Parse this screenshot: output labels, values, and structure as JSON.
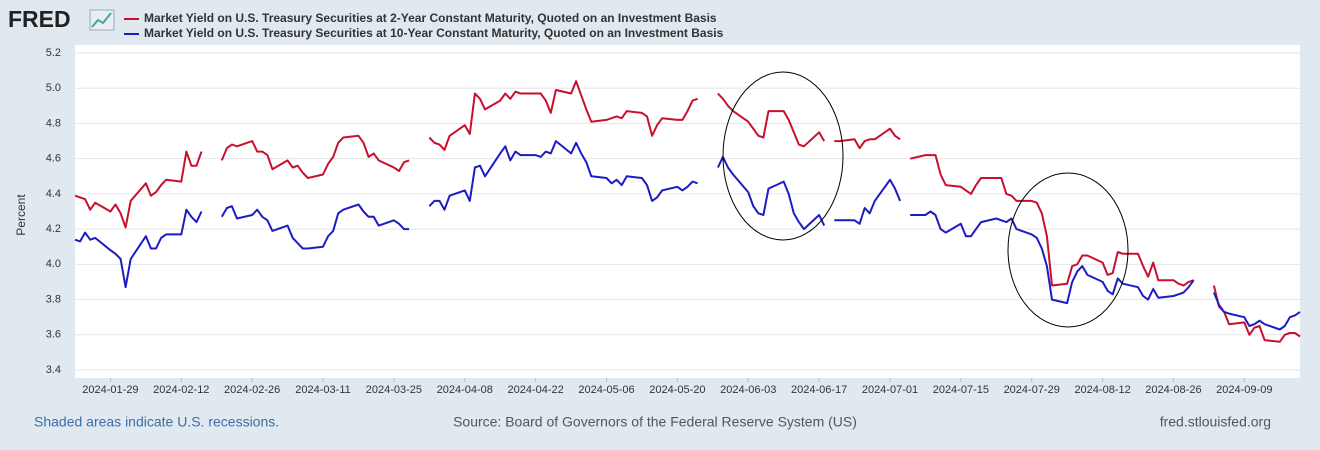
{
  "chart_data": {
    "type": "line",
    "logo": "FRED",
    "y_label": "Percent",
    "note": "Shaded areas indicate U.S. recessions.",
    "source": "Source: Board of Governors of the Federal Reserve System (US)",
    "site": "fred.stlouisfed.org",
    "x": [
      "2024-01-22",
      "2024-01-23",
      "2024-01-24",
      "2024-01-25",
      "2024-01-26",
      "2024-01-29",
      "2024-01-30",
      "2024-01-31",
      "2024-02-01",
      "2024-02-02",
      "2024-02-05",
      "2024-02-06",
      "2024-02-07",
      "2024-02-08",
      "2024-02-09",
      "2024-02-12",
      "2024-02-13",
      "2024-02-14",
      "2024-02-15",
      "2024-02-16",
      "2024-02-19",
      "2024-02-20",
      "2024-02-21",
      "2024-02-22",
      "2024-02-23",
      "2024-02-26",
      "2024-02-27",
      "2024-02-28",
      "2024-02-29",
      "2024-03-01",
      "2024-03-04",
      "2024-03-05",
      "2024-03-06",
      "2024-03-07",
      "2024-03-08",
      "2024-03-11",
      "2024-03-12",
      "2024-03-13",
      "2024-03-14",
      "2024-03-15",
      "2024-03-18",
      "2024-03-19",
      "2024-03-20",
      "2024-03-21",
      "2024-03-22",
      "2024-03-25",
      "2024-03-26",
      "2024-03-27",
      "2024-03-28",
      "2024-03-29",
      "2024-04-01",
      "2024-04-02",
      "2024-04-03",
      "2024-04-04",
      "2024-04-05",
      "2024-04-08",
      "2024-04-09",
      "2024-04-10",
      "2024-04-11",
      "2024-04-12",
      "2024-04-15",
      "2024-04-16",
      "2024-04-17",
      "2024-04-18",
      "2024-04-19",
      "2024-04-22",
      "2024-04-23",
      "2024-04-24",
      "2024-04-25",
      "2024-04-26",
      "2024-04-29",
      "2024-04-30",
      "2024-05-01",
      "2024-05-02",
      "2024-05-03",
      "2024-05-06",
      "2024-05-07",
      "2024-05-08",
      "2024-05-09",
      "2024-05-10",
      "2024-05-13",
      "2024-05-14",
      "2024-05-15",
      "2024-05-16",
      "2024-05-17",
      "2024-05-20",
      "2024-05-21",
      "2024-05-22",
      "2024-05-23",
      "2024-05-24",
      "2024-05-27",
      "2024-05-28",
      "2024-05-29",
      "2024-05-30",
      "2024-05-31",
      "2024-06-03",
      "2024-06-04",
      "2024-06-05",
      "2024-06-06",
      "2024-06-07",
      "2024-06-10",
      "2024-06-11",
      "2024-06-12",
      "2024-06-13",
      "2024-06-14",
      "2024-06-17",
      "2024-06-18",
      "2024-06-19",
      "2024-06-20",
      "2024-06-21",
      "2024-06-24",
      "2024-06-25",
      "2024-06-26",
      "2024-06-27",
      "2024-06-28",
      "2024-07-01",
      "2024-07-02",
      "2024-07-03",
      "2024-07-04",
      "2024-07-05",
      "2024-07-08",
      "2024-07-09",
      "2024-07-10",
      "2024-07-11",
      "2024-07-12",
      "2024-07-15",
      "2024-07-16",
      "2024-07-17",
      "2024-07-18",
      "2024-07-19",
      "2024-07-22",
      "2024-07-23",
      "2024-07-24",
      "2024-07-25",
      "2024-07-26",
      "2024-07-29",
      "2024-07-30",
      "2024-07-31",
      "2024-08-01",
      "2024-08-02",
      "2024-08-05",
      "2024-08-06",
      "2024-08-07",
      "2024-08-08",
      "2024-08-09",
      "2024-08-12",
      "2024-08-13",
      "2024-08-14",
      "2024-08-15",
      "2024-08-16",
      "2024-08-19",
      "2024-08-20",
      "2024-08-21",
      "2024-08-22",
      "2024-08-23",
      "2024-08-26",
      "2024-08-27",
      "2024-08-28",
      "2024-08-29",
      "2024-08-30",
      "2024-09-02",
      "2024-09-03",
      "2024-09-04",
      "2024-09-05",
      "2024-09-06",
      "2024-09-09",
      "2024-09-10",
      "2024-09-11",
      "2024-09-12",
      "2024-09-13",
      "2024-09-16",
      "2024-09-17",
      "2024-09-18",
      "2024-09-19",
      "2024-09-20"
    ],
    "series": [
      {
        "name": "Market Yield on U.S. Treasury Securities at 2-Year Constant Maturity, Quoted on an Investment Basis",
        "color": "#c8102e",
        "values": [
          4.39,
          4.38,
          4.37,
          4.31,
          4.35,
          4.3,
          4.34,
          4.29,
          4.21,
          4.36,
          4.46,
          4.39,
          4.41,
          4.45,
          4.48,
          4.47,
          4.64,
          4.56,
          4.56,
          4.64,
          null,
          4.59,
          4.66,
          4.68,
          4.67,
          4.7,
          4.64,
          4.64,
          4.62,
          4.54,
          4.59,
          4.55,
          4.56,
          4.52,
          4.49,
          4.51,
          4.57,
          4.61,
          4.69,
          4.72,
          4.73,
          4.69,
          4.61,
          4.63,
          4.59,
          4.55,
          4.53,
          4.58,
          4.59,
          null,
          4.72,
          4.69,
          4.68,
          4.65,
          4.73,
          4.79,
          4.74,
          4.97,
          4.94,
          4.88,
          4.93,
          4.97,
          4.94,
          4.98,
          4.97,
          4.97,
          4.97,
          4.93,
          4.86,
          4.99,
          4.97,
          5.04,
          4.96,
          4.88,
          4.81,
          4.82,
          4.83,
          4.84,
          4.83,
          4.87,
          4.86,
          4.84,
          4.73,
          4.79,
          4.83,
          4.82,
          4.82,
          4.87,
          4.93,
          4.94,
          null,
          4.97,
          4.94,
          4.9,
          4.87,
          4.81,
          4.77,
          4.73,
          4.72,
          4.87,
          4.87,
          4.82,
          4.75,
          4.68,
          4.67,
          4.75,
          4.7,
          null,
          4.7,
          4.7,
          4.71,
          4.66,
          4.7,
          4.71,
          4.71,
          4.77,
          4.73,
          4.71,
          null,
          4.6,
          4.62,
          4.62,
          4.62,
          4.51,
          4.45,
          4.44,
          4.42,
          4.4,
          4.45,
          4.49,
          4.49,
          4.49,
          4.4,
          4.39,
          4.36,
          4.36,
          4.35,
          4.29,
          4.16,
          3.88,
          3.89,
          3.99,
          4.0,
          4.05,
          4.05,
          4.01,
          3.94,
          3.95,
          4.07,
          4.06,
          4.06,
          3.99,
          3.93,
          4.01,
          3.91,
          3.91,
          3.89,
          3.88,
          3.9,
          3.91,
          null,
          3.88,
          3.76,
          3.73,
          3.66,
          3.67,
          3.6,
          3.64,
          3.65,
          3.57,
          3.56,
          3.6,
          3.61,
          3.61,
          3.59
        ]
      },
      {
        "name": "Market Yield on U.S. Treasury Securities at 10-Year Constant Maturity, Quoted on an Investment Basis",
        "color": "#1c1cc4",
        "values": [
          4.14,
          4.13,
          4.18,
          4.14,
          4.15,
          4.08,
          4.06,
          4.03,
          3.87,
          4.03,
          4.16,
          4.09,
          4.09,
          4.15,
          4.17,
          4.17,
          4.31,
          4.27,
          4.24,
          4.3,
          null,
          4.27,
          4.32,
          4.33,
          4.26,
          4.28,
          4.31,
          4.27,
          4.25,
          4.19,
          4.22,
          4.15,
          4.12,
          4.09,
          4.09,
          4.1,
          4.16,
          4.19,
          4.29,
          4.31,
          4.34,
          4.3,
          4.27,
          4.27,
          4.22,
          4.25,
          4.23,
          4.2,
          4.2,
          null,
          4.33,
          4.36,
          4.36,
          4.31,
          4.39,
          4.42,
          4.36,
          4.55,
          4.56,
          4.5,
          4.63,
          4.67,
          4.59,
          4.64,
          4.62,
          4.62,
          4.61,
          4.64,
          4.63,
          4.7,
          4.63,
          4.69,
          4.63,
          4.58,
          4.5,
          4.49,
          4.46,
          4.48,
          4.45,
          4.5,
          4.49,
          4.45,
          4.36,
          4.38,
          4.42,
          4.44,
          4.42,
          4.44,
          4.47,
          4.46,
          null,
          4.55,
          4.61,
          4.55,
          4.51,
          4.41,
          4.33,
          4.29,
          4.28,
          4.43,
          4.47,
          4.4,
          4.29,
          4.24,
          4.2,
          4.28,
          4.22,
          null,
          4.25,
          4.25,
          4.25,
          4.23,
          4.32,
          4.29,
          4.36,
          4.48,
          4.43,
          4.36,
          null,
          4.28,
          4.28,
          4.3,
          4.28,
          4.2,
          4.18,
          4.23,
          4.16,
          4.16,
          4.2,
          4.24,
          4.26,
          4.25,
          4.24,
          4.26,
          4.2,
          4.17,
          4.15,
          4.09,
          3.99,
          3.8,
          3.78,
          3.9,
          3.96,
          3.99,
          3.94,
          3.9,
          3.85,
          3.83,
          3.92,
          3.89,
          3.87,
          3.82,
          3.8,
          3.86,
          3.81,
          3.82,
          3.83,
          3.84,
          3.87,
          3.91,
          null,
          3.84,
          3.77,
          3.73,
          3.72,
          3.7,
          3.65,
          3.66,
          3.68,
          3.66,
          3.63,
          3.65,
          3.7,
          3.71,
          3.73
        ]
      }
    ],
    "xlim": [
      "2024-01-22",
      "2024-09-20"
    ],
    "xticks": [
      "2024-01-29",
      "2024-02-12",
      "2024-02-26",
      "2024-03-11",
      "2024-03-25",
      "2024-04-08",
      "2024-04-22",
      "2024-05-06",
      "2024-05-20",
      "2024-06-03",
      "2024-06-17",
      "2024-07-01",
      "2024-07-15",
      "2024-07-29",
      "2024-08-12",
      "2024-08-26",
      "2024-09-09"
    ],
    "ylim": [
      3.4,
      5.2
    ],
    "yticks": [
      3.4,
      3.6,
      3.8,
      {
        "value": 4,
        "label": "4.0"
      },
      4.2,
      4.4,
      4.6,
      4.8,
      {
        "value": 5,
        "label": "5.0"
      },
      5.2
    ],
    "grid": true
  }
}
